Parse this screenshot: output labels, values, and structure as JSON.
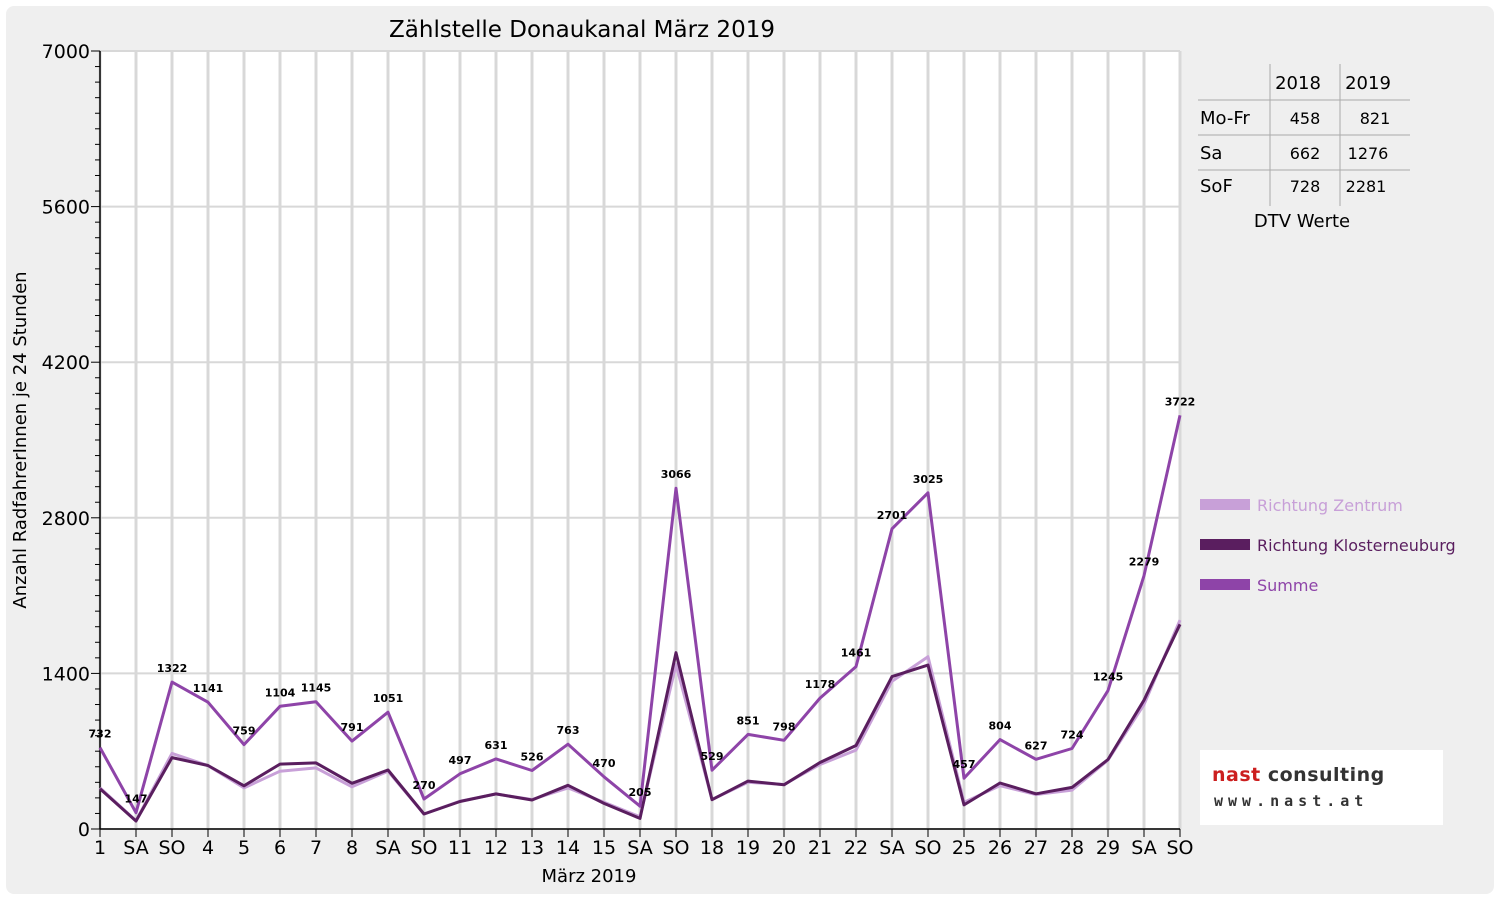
{
  "chart_data": {
    "type": "line",
    "title": "Zählstelle Donaukanal März 2019",
    "xlabel": "März 2019",
    "ylabel": "Anzahl RadfahrerInnen je 24 Stunden",
    "ylim": [
      0,
      7000
    ],
    "yticks": [
      0,
      1400,
      2800,
      4200,
      5600,
      7000
    ],
    "grid": true,
    "legend_position": "right",
    "categories": [
      "1",
      "SA",
      "SO",
      "4",
      "5",
      "6",
      "7",
      "8",
      "SA",
      "SO",
      "11",
      "12",
      "13",
      "14",
      "15",
      "SA",
      "SO",
      "18",
      "19",
      "20",
      "21",
      "22",
      "SA",
      "SO",
      "25",
      "26",
      "27",
      "28",
      "29",
      "SA",
      "SO"
    ],
    "weekend_categories": [
      2,
      9,
      16,
      23,
      30
    ],
    "weekend_color": "#e00000",
    "series": [
      {
        "name": "Richtung Zentrum",
        "color": "#c8a0d8",
        "values": [
          370,
          75,
          680,
          570,
          370,
          520,
          550,
          380,
          520,
          135,
          250,
          315,
          265,
          370,
          240,
          110,
          1480,
          265,
          420,
          400,
          580,
          710,
          1330,
          1550,
          240,
          390,
          310,
          350,
          620,
          1120,
          1880
        ]
      },
      {
        "name": "Richtung Klosterneuburg",
        "color": "#5a1e5f",
        "values": [
          362,
          72,
          642,
          571,
          389,
          584,
          595,
          411,
          531,
          135,
          247,
          316,
          261,
          393,
          230,
          95,
          1586,
          264,
          431,
          398,
          598,
          751,
          1371,
          1475,
          217,
          414,
          317,
          374,
          625,
          1159,
          1842
        ]
      },
      {
        "name": "Summe",
        "color": "#8e44a8",
        "values": [
          732,
          147,
          1322,
          1141,
          759,
          1104,
          1145,
          791,
          1051,
          270,
          497,
          631,
          526,
          763,
          470,
          205,
          3066,
          529,
          851,
          798,
          1178,
          1461,
          2701,
          3025,
          457,
          804,
          627,
          724,
          1245,
          2279,
          3722
        ],
        "data_labels": [
          "732",
          "147",
          "1322",
          "1141",
          "759",
          "1104",
          "1145",
          "791",
          "1051",
          "270",
          "497",
          "631",
          "526",
          "763",
          "470",
          "205",
          "3066",
          "529",
          "851",
          "798",
          "1178",
          "1461",
          "2701",
          "3025",
          "457",
          "804",
          "627",
          "724",
          "1245",
          "2279",
          "3722"
        ]
      }
    ]
  },
  "dtv_table": {
    "caption": "DTV Werte",
    "columns": [
      "2018",
      "2019"
    ],
    "rows": [
      {
        "label": "Mo-Fr",
        "v2018": "458",
        "v2019": "821"
      },
      {
        "label": "Sa",
        "v2018": "662",
        "v2019": "1276"
      },
      {
        "label": "SoF",
        "v2018": "728",
        "v2019": "2281"
      }
    ]
  },
  "logo": {
    "brand_part1": "nast",
    "brand_part2": " consulting",
    "url": "www.nast.at"
  }
}
